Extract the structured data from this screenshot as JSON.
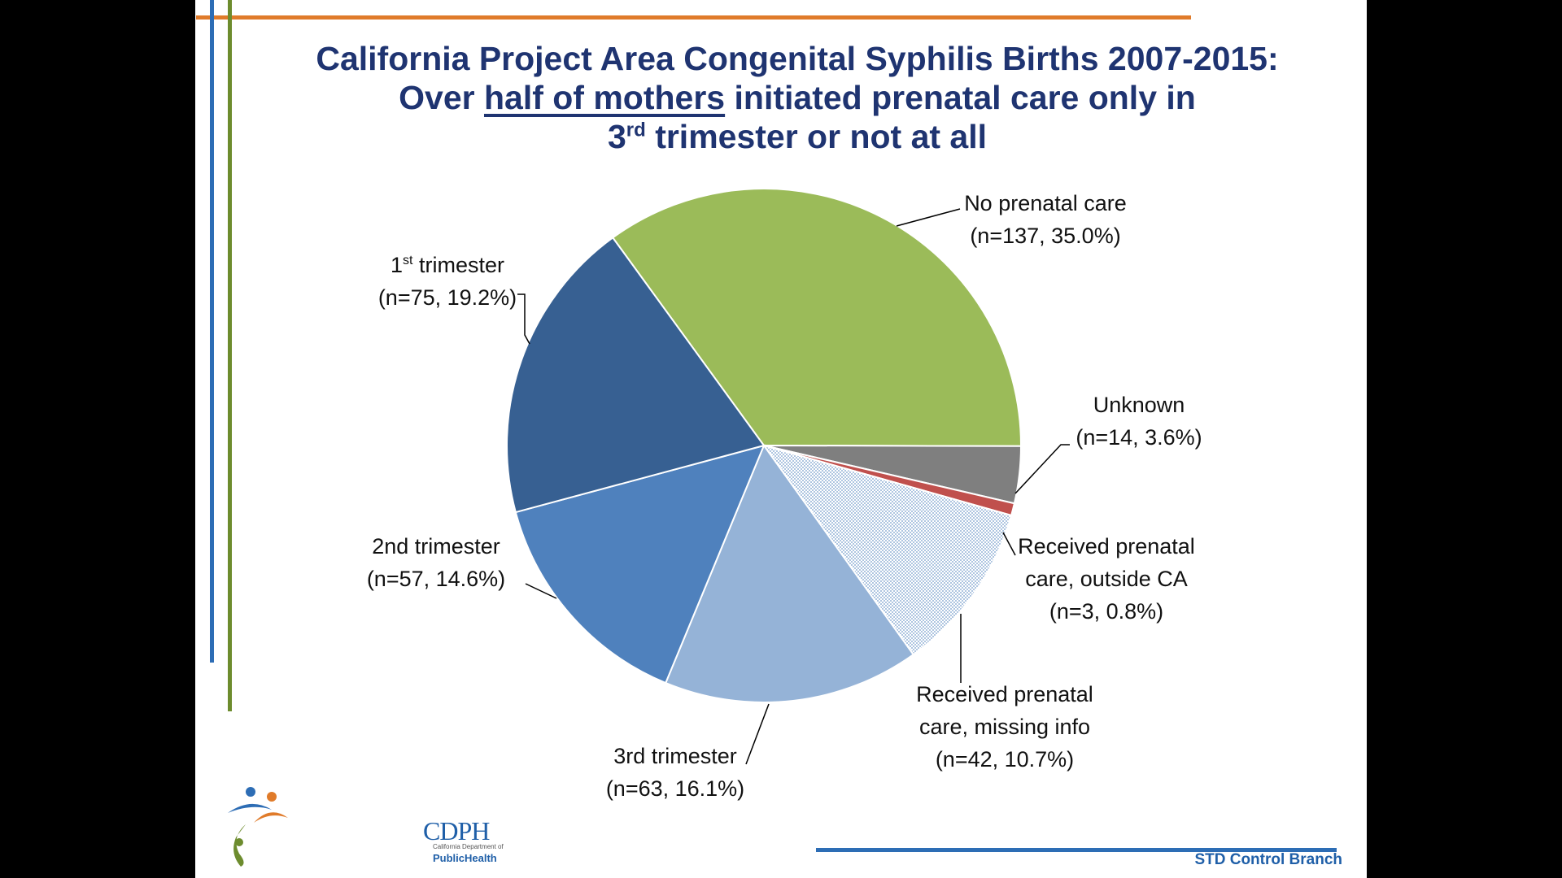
{
  "slide": {
    "title_line1": "California Project Area Congenital Syphilis Births 2007-2015:",
    "title_line2_pre": "Over ",
    "title_line2_underlined": "half of mothers",
    "title_line2_post": " initiated prenatal care only in",
    "title_line3_num": "3",
    "title_line3_sup": "rd",
    "title_line3_post": " trimester or not at all",
    "footer": "STD Control Branch",
    "logo": {
      "name": "CDPH",
      "subtitle": "California Department of",
      "subtitle2": "PublicHealth"
    },
    "colors": {
      "title": "#1f3471",
      "orange_rule": "#e07b2a",
      "blue_rule": "#2d6db5",
      "green_rule": "#6d8c2e"
    }
  },
  "chart_data": {
    "type": "pie",
    "title": "California Project Area Congenital Syphilis Births 2007-2015: Over half of mothers initiated prenatal care only in 3rd trimester or not at all",
    "slices": [
      {
        "id": "no_care",
        "label": "No prenatal care",
        "detail": "(n=137, 35.0%)",
        "n": 137,
        "percent": 35.0,
        "color": "#9bbb59"
      },
      {
        "id": "unknown",
        "label": "Unknown",
        "detail": "(n=14, 3.6%)",
        "n": 14,
        "percent": 3.6,
        "color": "#7f7f7f"
      },
      {
        "id": "outside_ca",
        "label": "Received prenatal care, outside CA",
        "label_line1": "Received prenatal",
        "label_line2": "care, outside CA",
        "detail": "(n=3, 0.8%)",
        "n": 3,
        "percent": 0.8,
        "color": "#c0504d"
      },
      {
        "id": "missing_info",
        "label": "Received prenatal care, missing info",
        "label_line1": "Received prenatal",
        "label_line2": "care, missing info",
        "detail": "(n=42, 10.7%)",
        "n": 42,
        "percent": 10.7,
        "color": "#b9cde5",
        "pattern": "dotted"
      },
      {
        "id": "third",
        "label": "3rd trimester",
        "detail": "(n=63, 16.1%)",
        "n": 63,
        "percent": 16.1,
        "color": "#95b3d7"
      },
      {
        "id": "second",
        "label": "2nd trimester",
        "detail": "(n=57, 14.6%)",
        "n": 57,
        "percent": 14.6,
        "color": "#4f81bd"
      },
      {
        "id": "first",
        "label_num": "1",
        "label_sup": "st",
        "label_post": " trimester",
        "label": "1st trimester",
        "detail": "(n=75, 19.2%)",
        "n": 75,
        "percent": 19.2,
        "color": "#376092"
      }
    ]
  }
}
